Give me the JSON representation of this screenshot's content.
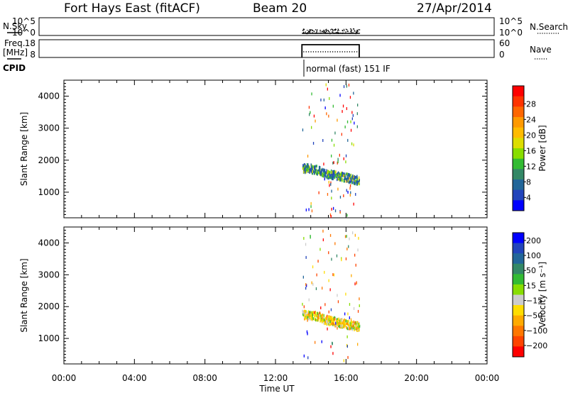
{
  "header": {
    "station": "Fort Hays East (fitACF)",
    "beam": "Beam 20",
    "date": "27/Apr/2014"
  },
  "panels": {
    "nsky": {
      "label": "N.Sky",
      "left_ticks": [
        "10^5",
        "10^0"
      ],
      "right_ticks": [
        "10^5",
        "10^0"
      ],
      "right_legend": "N.Search"
    },
    "freq": {
      "label_line1": "Freq.",
      "label_line2": "[MHz]",
      "left_ticks": [
        "18",
        "8"
      ],
      "right_ticks": [
        "60",
        "0"
      ],
      "right_legend": "Nave"
    },
    "cpid": {
      "label": "CPID",
      "program": "normal (fast) 151 IF"
    }
  },
  "chart_data": [
    {
      "type": "scatter",
      "title": "",
      "xlabel": "",
      "ylabel": "Slant Range [km]",
      "x_ticks": [
        "00:00",
        "04:00",
        "08:00",
        "12:00",
        "16:00",
        "20:00",
        "00:00"
      ],
      "xlim_hours": [
        0,
        24
      ],
      "ylim": [
        200,
        4500
      ],
      "y_ticks": [
        1000,
        2000,
        3000,
        4000
      ],
      "data_window_hours": [
        13.5,
        16.75
      ],
      "echo_band": {
        "start_hour": 13.5,
        "end_hour": 16.75,
        "start_km": 1780,
        "end_km": 1400
      },
      "colorbar": {
        "label": "Power [dB]",
        "tick_labels": [
          "28",
          "24",
          "20",
          "16",
          "12",
          "8",
          "4"
        ],
        "colors": [
          "#ff0000",
          "#ff3300",
          "#ff6600",
          "#ff9900",
          "#ffbb00",
          "#dddd00",
          "#88dd00",
          "#33bb33",
          "#338866",
          "#226699",
          "#2244bb",
          "#0000ff"
        ]
      }
    },
    {
      "type": "scatter",
      "title": "",
      "xlabel": "Time UT",
      "ylabel": "Slant Range [km]",
      "x_ticks": [
        "00:00",
        "04:00",
        "08:00",
        "12:00",
        "16:00",
        "20:00",
        "00:00"
      ],
      "xlim_hours": [
        0,
        24
      ],
      "ylim": [
        200,
        4500
      ],
      "y_ticks": [
        1000,
        2000,
        3000,
        4000
      ],
      "data_window_hours": [
        13.5,
        16.75
      ],
      "echo_band": {
        "start_hour": 13.5,
        "end_hour": 16.75,
        "start_km": 1780,
        "end_km": 1400
      },
      "colorbar": {
        "label": "Velocity [m s⁻¹]",
        "tick_labels": [
          "200",
          "100",
          "50",
          "15",
          "−15",
          "−50",
          "−100",
          "−200"
        ],
        "colors": [
          "#0000ff",
          "#2244bb",
          "#226699",
          "#338866",
          "#33bb33",
          "#88dd00",
          "#cccccc",
          "#ffdd00",
          "#ffaa00",
          "#ff7700",
          "#ff4400",
          "#ff0000"
        ]
      }
    }
  ]
}
